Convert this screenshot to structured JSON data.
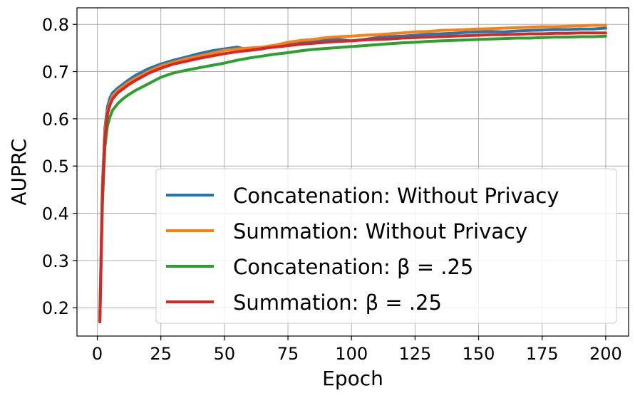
{
  "chart_data": {
    "type": "line",
    "title": "",
    "xlabel": "Epoch",
    "ylabel": "AUPRC",
    "xlim": [
      -8,
      209
    ],
    "ylim": [
      0.14,
      0.835
    ],
    "x_ticks": [
      0,
      25,
      50,
      75,
      100,
      125,
      150,
      175,
      200
    ],
    "y_ticks": [
      0.2,
      0.3,
      0.4,
      0.5,
      0.6,
      0.7,
      0.8
    ],
    "x_tick_labels": [
      "0",
      "25",
      "50",
      "75",
      "100",
      "125",
      "150",
      "175",
      "200"
    ],
    "y_tick_labels": [
      "0.2",
      "0.3",
      "0.4",
      "0.5",
      "0.6",
      "0.7",
      "0.8"
    ],
    "grid": true,
    "legend_position": "lower-right",
    "x": [
      1,
      2,
      3,
      4,
      5,
      6,
      8,
      10,
      12,
      15,
      20,
      25,
      30,
      35,
      40,
      45,
      50,
      55,
      60,
      65,
      70,
      75,
      80,
      85,
      90,
      95,
      100,
      105,
      110,
      115,
      120,
      125,
      130,
      135,
      140,
      145,
      150,
      155,
      160,
      165,
      170,
      175,
      180,
      185,
      190,
      195,
      200
    ],
    "series": [
      {
        "name": "Concatenation: Without Privacy",
        "color": "#1f77b4",
        "values": [
          0.18,
          0.46,
          0.58,
          0.625,
          0.645,
          0.655,
          0.665,
          0.673,
          0.681,
          0.692,
          0.706,
          0.716,
          0.724,
          0.731,
          0.738,
          0.744,
          0.748,
          0.752,
          0.745,
          0.748,
          0.755,
          0.758,
          0.762,
          0.764,
          0.766,
          0.768,
          0.765,
          0.768,
          0.772,
          0.774,
          0.775,
          0.777,
          0.779,
          0.78,
          0.781,
          0.783,
          0.784,
          0.785,
          0.784,
          0.786,
          0.787,
          0.788,
          0.789,
          0.789,
          0.79,
          0.79,
          0.792
        ]
      },
      {
        "name": "Summation: Without Privacy",
        "color": "#ff7f0e",
        "values": [
          0.18,
          0.45,
          0.57,
          0.615,
          0.635,
          0.648,
          0.66,
          0.668,
          0.676,
          0.686,
          0.7,
          0.712,
          0.72,
          0.727,
          0.733,
          0.739,
          0.745,
          0.748,
          0.75,
          0.752,
          0.756,
          0.762,
          0.766,
          0.768,
          0.772,
          0.774,
          0.775,
          0.777,
          0.778,
          0.78,
          0.782,
          0.784,
          0.785,
          0.787,
          0.788,
          0.789,
          0.79,
          0.791,
          0.792,
          0.793,
          0.794,
          0.795,
          0.795,
          0.796,
          0.797,
          0.798,
          0.798
        ]
      },
      {
        "name": "Concatenation: β = .25",
        "color": "#2ca02c",
        "values": [
          0.17,
          0.42,
          0.54,
          0.585,
          0.605,
          0.618,
          0.632,
          0.642,
          0.65,
          0.66,
          0.674,
          0.688,
          0.697,
          0.703,
          0.708,
          0.713,
          0.718,
          0.724,
          0.729,
          0.733,
          0.737,
          0.74,
          0.744,
          0.747,
          0.749,
          0.751,
          0.753,
          0.755,
          0.757,
          0.759,
          0.761,
          0.762,
          0.764,
          0.765,
          0.766,
          0.767,
          0.768,
          0.769,
          0.77,
          0.771,
          0.771,
          0.772,
          0.773,
          0.773,
          0.774,
          0.774,
          0.775
        ]
      },
      {
        "name": "Summation: β = .25",
        "color": "#d62728",
        "values": [
          0.17,
          0.44,
          0.56,
          0.61,
          0.63,
          0.642,
          0.655,
          0.663,
          0.671,
          0.681,
          0.696,
          0.707,
          0.716,
          0.722,
          0.728,
          0.733,
          0.738,
          0.742,
          0.745,
          0.749,
          0.752,
          0.755,
          0.758,
          0.76,
          0.762,
          0.764,
          0.765,
          0.767,
          0.768,
          0.769,
          0.771,
          0.772,
          0.773,
          0.774,
          0.775,
          0.776,
          0.777,
          0.778,
          0.778,
          0.779,
          0.78,
          0.78,
          0.781,
          0.781,
          0.782,
          0.782,
          0.782
        ]
      }
    ]
  }
}
